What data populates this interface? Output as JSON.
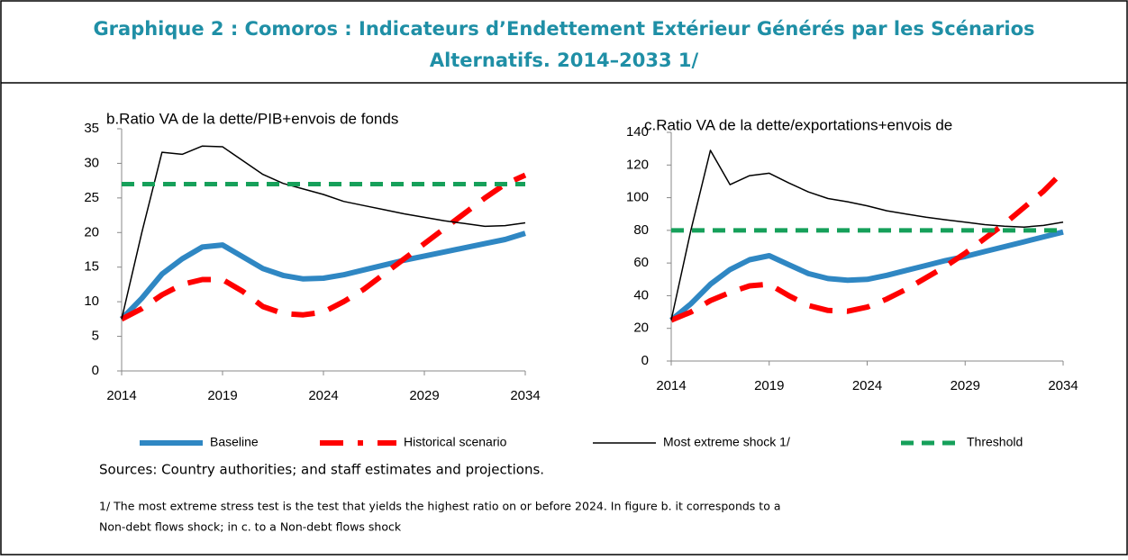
{
  "header": {
    "title": [
      "Graphique 2 : Comoros : Indicateurs d’Endettement Extérieur Générés par les Scénarios",
      "Alternatifs. 2014–2033 1/"
    ]
  },
  "chart_data": [
    {
      "type": "line",
      "title": "b.Ratio VA de la dette/PIB+envois de fonds",
      "x": [
        2014,
        2015,
        2016,
        2017,
        2018,
        2019,
        2020,
        2021,
        2022,
        2023,
        2024,
        2025,
        2026,
        2027,
        2028,
        2029,
        2030,
        2031,
        2032,
        2033,
        2034
      ],
      "xlim": [
        2014,
        2034
      ],
      "xticks": [
        2014,
        2019,
        2024,
        2029,
        2034
      ],
      "ylim": [
        0,
        35
      ],
      "yticks": [
        0,
        5,
        10,
        15,
        20,
        25,
        30,
        35
      ],
      "grid": false,
      "series": [
        {
          "name": "Baseline",
          "color": "#2f87c3",
          "line_width": 6,
          "dashed": false,
          "values": [
            7.5,
            10.5,
            14,
            16.2,
            17.9,
            18.2,
            16.5,
            14.8,
            13.8,
            13.3,
            13.4,
            13.9,
            14.6,
            15.3,
            16,
            16.6,
            17.2,
            17.8,
            18.4,
            19,
            19.9
          ]
        },
        {
          "name": "Historical scenario",
          "color": "#ff0000",
          "line_width": 6,
          "dashed": true,
          "values": [
            7.5,
            9,
            11,
            12.5,
            13.2,
            13.2,
            11.5,
            9.3,
            8.3,
            8.1,
            8.5,
            10,
            11.8,
            14,
            16.2,
            18.4,
            20.6,
            22.8,
            25,
            27,
            28.3
          ]
        },
        {
          "name": "Most extreme shock  1/",
          "color": "#000000",
          "line_width": 1.5,
          "dashed": false,
          "values": [
            7.5,
            20,
            31.6,
            31.3,
            32.5,
            32.4,
            30.4,
            28.4,
            27.1,
            26.3,
            25.5,
            24.5,
            23.9,
            23.3,
            22.7,
            22.2,
            21.7,
            21.3,
            20.9,
            21,
            21.4
          ]
        },
        {
          "name": "Threshold",
          "color": "#16a05a",
          "line_width": 5,
          "dashed": true,
          "values": [
            27,
            27,
            27,
            27,
            27,
            27,
            27,
            27,
            27,
            27,
            27,
            27,
            27,
            27,
            27,
            27,
            27,
            27,
            27,
            27,
            27
          ]
        }
      ]
    },
    {
      "type": "line",
      "title": "c.Ratio VA de la dette/exportations+envois de",
      "x": [
        2014,
        2015,
        2016,
        2017,
        2018,
        2019,
        2020,
        2021,
        2022,
        2023,
        2024,
        2025,
        2026,
        2027,
        2028,
        2029,
        2030,
        2031,
        2032,
        2033,
        2034
      ],
      "xlim": [
        2014,
        2034
      ],
      "xticks": [
        2014,
        2019,
        2024,
        2029,
        2034
      ],
      "ylim": [
        0,
        140
      ],
      "yticks": [
        0,
        20,
        40,
        60,
        80,
        100,
        120,
        140
      ],
      "grid": false,
      "series": [
        {
          "name": "Baseline",
          "color": "#2f87c3",
          "line_width": 6,
          "dashed": false,
          "values": [
            25,
            35,
            47,
            56,
            62,
            64.5,
            59,
            53.5,
            50.5,
            49.5,
            50,
            52.5,
            55.5,
            58.5,
            61.5,
            64,
            67,
            70,
            73,
            76,
            79
          ]
        },
        {
          "name": "Historical scenario",
          "color": "#ff0000",
          "line_width": 6,
          "dashed": true,
          "values": [
            25,
            30,
            37,
            42,
            46,
            47,
            40,
            34,
            31,
            30.5,
            33,
            38,
            44,
            51,
            58,
            66,
            75,
            84,
            94,
            104,
            116
          ]
        },
        {
          "name": "Most extreme shock  1/",
          "color": "#000000",
          "line_width": 1.5,
          "dashed": false,
          "values": [
            25,
            80,
            129,
            108,
            113.5,
            115,
            109,
            103.5,
            99.5,
            97.5,
            95,
            92,
            90,
            88,
            86.5,
            85,
            83.5,
            82.5,
            82,
            83,
            85
          ]
        },
        {
          "name": "Threshold",
          "color": "#16a05a",
          "line_width": 5,
          "dashed": true,
          "values": [
            80,
            80,
            80,
            80,
            80,
            80,
            80,
            80,
            80,
            80,
            80,
            80,
            80,
            80,
            80,
            80,
            80,
            80,
            80,
            80,
            80
          ]
        }
      ]
    }
  ],
  "sources": "Sources: Country authorities; and staff estimates and projections.",
  "footnote": [
    "1/ The most extreme stress test is the test that yields the highest ratio on or before 2024. In figure b. it corresponds to a",
    "Non-debt flows shock; in c. to a Non-debt flows shock"
  ]
}
